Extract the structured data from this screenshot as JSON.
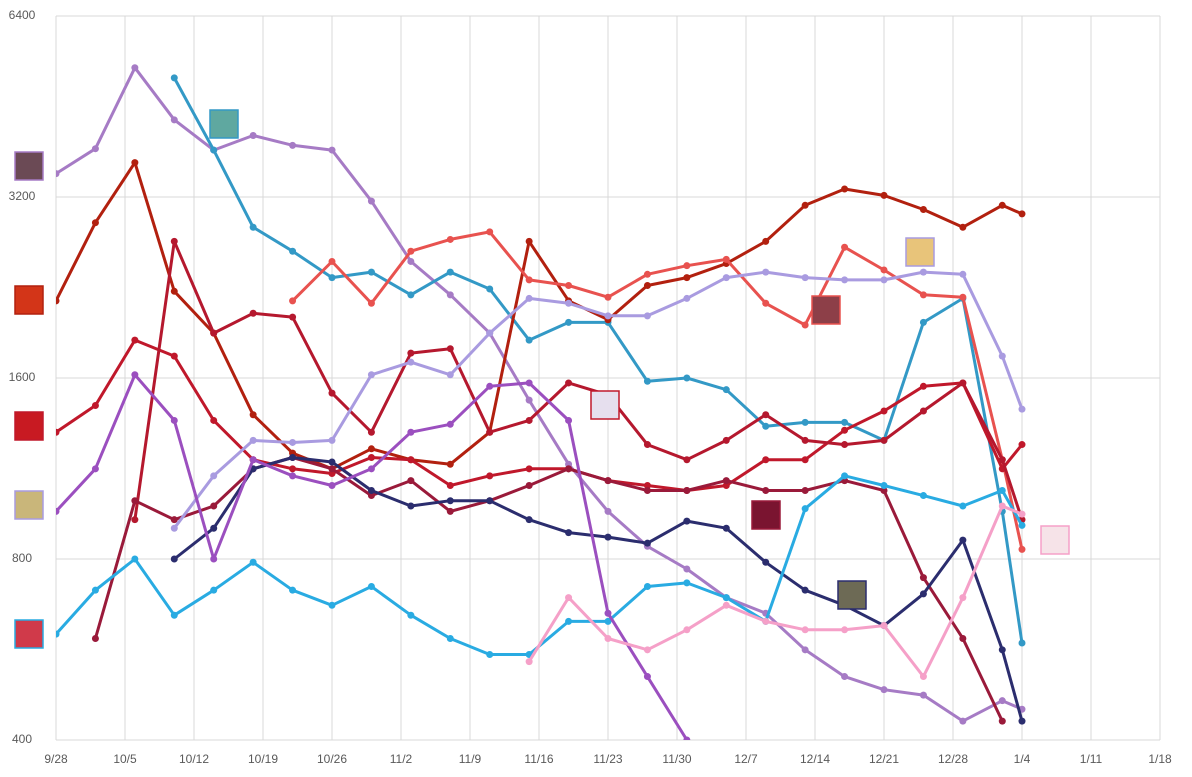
{
  "chart_data": {
    "type": "line",
    "log_y": true,
    "grid": true,
    "x": [
      0,
      4,
      8,
      12,
      16,
      20,
      24,
      28,
      32,
      36,
      40,
      44,
      48,
      52,
      56,
      60,
      64,
      68,
      72,
      76,
      80,
      84,
      88,
      92,
      96,
      98
    ],
    "xlim": [
      0,
      112
    ],
    "xticks": [
      {
        "value": 0,
        "label": "9/28"
      },
      {
        "value": 7,
        "label": "10/5"
      },
      {
        "value": 14,
        "label": "10/12"
      },
      {
        "value": 21,
        "label": "10/19"
      },
      {
        "value": 28,
        "label": "10/26"
      },
      {
        "value": 35,
        "label": "11/2"
      },
      {
        "value": 42,
        "label": "11/9"
      },
      {
        "value": 49,
        "label": "11/16"
      },
      {
        "value": 56,
        "label": "11/23"
      },
      {
        "value": 63,
        "label": "11/30"
      },
      {
        "value": 70,
        "label": "12/7"
      },
      {
        "value": 77,
        "label": "12/14"
      },
      {
        "value": 84,
        "label": "12/21"
      },
      {
        "value": 91,
        "label": "12/28"
      },
      {
        "value": 98,
        "label": "1/4"
      },
      {
        "value": 105,
        "label": "1/11"
      },
      {
        "value": 112,
        "label": "1/18"
      }
    ],
    "ylim": [
      400,
      6400
    ],
    "yticks": [
      400,
      800,
      1600,
      3200,
      6400
    ],
    "series": [
      {
        "color": "#a67bc5",
        "values": [
          3500,
          3850,
          5250,
          4300,
          3830,
          4050,
          3900,
          3830,
          3150,
          2500,
          2200,
          1900,
          1470,
          1150,
          960,
          840,
          770,
          690,
          650,
          565,
          510,
          485,
          475,
          430,
          465,
          450
        ]
      },
      {
        "color": "#3399c6",
        "values": [
          null,
          null,
          null,
          5050,
          3830,
          2850,
          2600,
          2350,
          2400,
          2200,
          2400,
          2250,
          1850,
          1980,
          1980,
          1580,
          1600,
          1530,
          1330,
          1350,
          1350,
          1260,
          1980,
          2170,
          960,
          580
        ]
      },
      {
        "color": "#b2200f",
        "values": [
          2150,
          2900,
          3650,
          2230,
          1900,
          1390,
          1200,
          1130,
          1220,
          1170,
          1150,
          1300,
          2700,
          2150,
          2000,
          2280,
          2350,
          2480,
          2700,
          3100,
          3300,
          3220,
          3050,
          2850,
          3100,
          3000
        ]
      },
      {
        "color": "#e8524f",
        "values": [
          null,
          null,
          null,
          null,
          null,
          null,
          2150,
          2500,
          2130,
          2600,
          2720,
          2800,
          2330,
          2280,
          2180,
          2380,
          2460,
          2520,
          2130,
          1960,
          2640,
          2420,
          2200,
          2180,
          1170,
          830
        ]
      },
      {
        "color": "#c0182b",
        "values": [
          1300,
          1440,
          1850,
          1740,
          1360,
          1170,
          1130,
          1110,
          1180,
          1170,
          1060,
          1100,
          1130,
          1130,
          1080,
          1060,
          1040,
          1060,
          1170,
          1170,
          1310,
          1410,
          1550,
          1570,
          1130,
          1240
        ]
      },
      {
        "color": "#b5182e",
        "values": [
          null,
          null,
          930,
          2700,
          1900,
          2050,
          2020,
          1510,
          1300,
          1760,
          1790,
          1300,
          1360,
          1570,
          1500,
          1240,
          1170,
          1260,
          1390,
          1260,
          1240,
          1260,
          1410,
          1570,
          1170,
          930
        ]
      },
      {
        "color": "#9a1a3a",
        "values": [
          null,
          590,
          1000,
          930,
          980,
          1130,
          1180,
          1130,
          1020,
          1080,
          960,
          1000,
          1060,
          1130,
          1080,
          1040,
          1040,
          1080,
          1040,
          1040,
          1080,
          1040,
          745,
          590,
          430,
          null
        ]
      },
      {
        "color": "#2b2d6e",
        "values": [
          null,
          null,
          null,
          800,
          900,
          1130,
          1180,
          1160,
          1040,
          980,
          1000,
          1000,
          930,
          885,
          870,
          850,
          925,
          900,
          790,
          710,
          670,
          620,
          700,
          860,
          565,
          430
        ]
      },
      {
        "color": "#29abe2",
        "values": [
          600,
          710,
          800,
          645,
          710,
          790,
          710,
          670,
          720,
          645,
          590,
          555,
          555,
          630,
          630,
          720,
          730,
          690,
          630,
          970,
          1100,
          1060,
          1020,
          980,
          1040,
          910
        ]
      },
      {
        "color": "#a99be0",
        "values": [
          null,
          null,
          null,
          900,
          1100,
          1260,
          1250,
          1260,
          1620,
          1700,
          1620,
          1900,
          2170,
          2130,
          2030,
          2030,
          2170,
          2350,
          2400,
          2350,
          2330,
          2330,
          2400,
          2380,
          1740,
          1420
        ]
      },
      {
        "color": "#9b4fbf",
        "values": [
          960,
          1130,
          1620,
          1360,
          800,
          1170,
          1100,
          1060,
          1130,
          1300,
          1340,
          1550,
          1570,
          1360,
          650,
          510,
          400,
          null,
          null,
          null,
          null,
          null,
          null,
          null,
          null,
          null
        ]
      },
      {
        "color": "#f5a0c8",
        "values": [
          null,
          null,
          null,
          null,
          null,
          null,
          null,
          null,
          null,
          null,
          null,
          null,
          540,
          690,
          590,
          565,
          610,
          670,
          630,
          610,
          610,
          620,
          510,
          690,
          980,
          950
        ]
      }
    ]
  }
}
